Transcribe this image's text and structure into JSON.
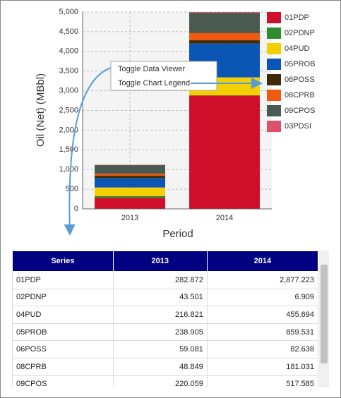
{
  "chart_data": {
    "type": "stacked-bar",
    "x_label": "Period",
    "y_label": "Oil (Net) (MBbl)",
    "categories": [
      "2013",
      "2014"
    ],
    "series": [
      {
        "name": "01PDP",
        "color": "#d0102b",
        "values": [
          282.872,
          2877.223
        ]
      },
      {
        "name": "02PDNP",
        "color": "#2e8b2e",
        "values": [
          43.501,
          6.909
        ]
      },
      {
        "name": "04PUD",
        "color": "#f5d000",
        "values": [
          216.821,
          455.694
        ]
      },
      {
        "name": "05PROB",
        "color": "#0b55b5",
        "values": [
          238.905,
          859.531
        ]
      },
      {
        "name": "06POSS",
        "color": "#3d2b0a",
        "values": [
          59.081,
          82.638
        ]
      },
      {
        "name": "08CPRB",
        "color": "#f05a10",
        "values": [
          48.849,
          181.031
        ]
      },
      {
        "name": "09CPOS",
        "color": "#4a5a50",
        "values": [
          220.059,
          517.585
        ]
      },
      {
        "name": "03PDSI",
        "color": "#e0506a",
        "values": [
          9,
          18
        ]
      }
    ],
    "ylim": [
      0,
      5000
    ],
    "yticks": [
      0,
      500,
      {
        "value": 1000,
        "label": "1,000"
      },
      {
        "value": 1500,
        "label": "1,500"
      },
      {
        "value": 2000,
        "label": "2,000"
      },
      {
        "value": 2500,
        "label": "2,500"
      },
      {
        "value": 3000,
        "label": "3,000"
      },
      {
        "value": 3500,
        "label": "3,500"
      },
      {
        "value": 4000,
        "label": "4,000"
      },
      {
        "value": 4500,
        "label": "4,500"
      },
      {
        "value": 5000,
        "label": "5,000"
      }
    ],
    "grid": true
  },
  "context_menu": {
    "items": [
      "Toggle Data Viewer",
      "Toggle Chart Legend"
    ]
  },
  "table": {
    "columns": [
      "Series",
      "2013",
      "2014"
    ],
    "rows": [
      [
        "01PDP",
        "282.872",
        "2,877.223"
      ],
      [
        "02PDNP",
        "43.501",
        "6.909"
      ],
      [
        "04PUD",
        "216.821",
        "455.694"
      ],
      [
        "05PROB",
        "238.905",
        "859.531"
      ],
      [
        "06POSS",
        "59.081",
        "82.638"
      ],
      [
        "08CPRB",
        "48.849",
        "181.031"
      ],
      [
        "09CPOS",
        "220.059",
        "517.585"
      ]
    ]
  }
}
